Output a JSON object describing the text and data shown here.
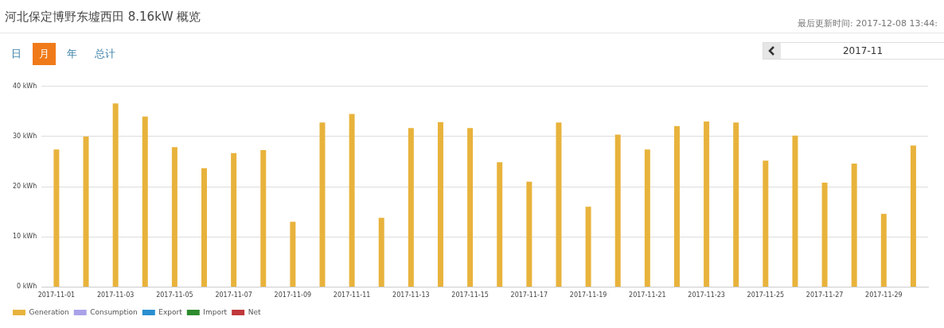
{
  "chart_data": {
    "type": "bar",
    "title": "河北保定博野东墟西田 8.16kW 概览",
    "annotations": [
      "最后更新时间: 2017-12-08 13:44:",
      "日",
      "月",
      "年",
      "总计",
      "2017-11"
    ],
    "categories": [
      "2017-11-01",
      null,
      "2017-11-03",
      null,
      "2017-11-05",
      null,
      "2017-11-07",
      null,
      "2017-11-09",
      null,
      "2017-11-11",
      null,
      "2017-11-13",
      null,
      "2017-11-15",
      null,
      "2017-11-17",
      null,
      "2017-11-19",
      null,
      "2017-11-21",
      null,
      "2017-11-23",
      null,
      "2017-11-25",
      null,
      "2017-11-27",
      null,
      "2017-11-29",
      null
    ],
    "series": [
      {
        "name": "Generation",
        "color": "#e8b33c",
        "values": [
          27.4,
          30.0,
          36.6,
          34.0,
          27.9,
          23.7,
          26.7,
          27.3,
          13.0,
          32.8,
          34.5,
          13.8,
          31.7,
          32.9,
          31.7,
          24.9,
          21.0,
          32.8,
          16.0,
          30.4,
          27.4,
          32.1,
          33.0,
          32.8,
          25.2,
          30.2,
          20.8,
          24.6,
          14.6,
          28.2
        ]
      },
      {
        "name": "Consumption",
        "color": "#a9a2e8",
        "values": [
          null,
          null,
          null,
          null,
          null,
          null,
          null,
          null,
          null,
          null,
          null,
          null,
          null,
          null,
          null,
          null,
          null,
          null,
          null,
          null,
          null,
          null,
          null,
          null,
          null,
          null,
          null,
          null,
          null,
          null
        ]
      },
      {
        "name": "Export",
        "color": "#2a8fd0",
        "values": [
          null,
          null,
          null,
          null,
          null,
          null,
          null,
          null,
          null,
          null,
          null,
          null,
          null,
          null,
          null,
          null,
          null,
          null,
          null,
          null,
          null,
          null,
          null,
          null,
          null,
          null,
          null,
          null,
          null,
          null
        ]
      },
      {
        "name": "Import",
        "color": "#2e8b2e",
        "values": [
          null,
          null,
          null,
          null,
          null,
          null,
          null,
          null,
          null,
          null,
          null,
          null,
          null,
          null,
          null,
          null,
          null,
          null,
          null,
          null,
          null,
          null,
          null,
          null,
          null,
          null,
          null,
          null,
          null,
          null
        ]
      },
      {
        "name": "Net",
        "color": "#c0393b",
        "values": [
          null,
          null,
          null,
          null,
          null,
          null,
          null,
          null,
          null,
          null,
          null,
          null,
          null,
          null,
          null,
          null,
          null,
          null,
          null,
          null,
          null,
          null,
          null,
          null,
          null,
          null,
          null,
          null,
          null,
          null
        ]
      }
    ],
    "ylim": [
      0,
      40
    ],
    "yticks": [
      {
        "value": 0,
        "label": "0 kWh"
      },
      {
        "value": 10,
        "label": "10 kWh"
      },
      {
        "value": 20,
        "label": "20 kWh"
      },
      {
        "value": 30,
        "label": "30 kWh"
      },
      {
        "value": 40,
        "label": "40 kWh"
      }
    ],
    "grid": "y",
    "legend": "bottom left"
  }
}
